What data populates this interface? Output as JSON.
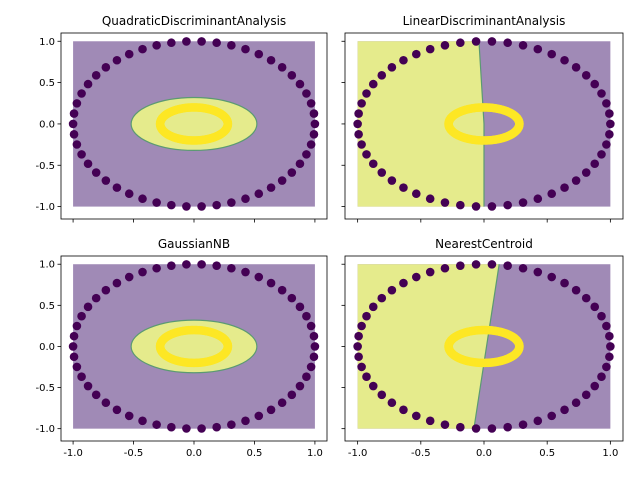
{
  "chart_data": [
    {
      "type": "scatter",
      "title": "QuadraticDiscriminantAnalysis",
      "region": "ellipse",
      "xlim": [
        -1.1,
        1.1
      ],
      "ylim": [
        -1.15,
        1.1
      ],
      "xticks": [
        "-1.0",
        "-0.5",
        "0.0",
        "0.5",
        "1.0"
      ],
      "yticks": [
        "-1.0",
        "-0.5",
        "0.0",
        "0.5",
        "1.0"
      ],
      "show_xtick_labels": false,
      "show_ytick_labels": true
    },
    {
      "type": "scatter",
      "title": "LinearDiscriminantAnalysis",
      "region": "split",
      "boundary": [
        [
          -0.04,
          1.0
        ],
        [
          0.0,
          0.0
        ],
        [
          0.0,
          -1.0
        ]
      ],
      "xlim": [
        -1.1,
        1.1
      ],
      "ylim": [
        -1.15,
        1.1
      ],
      "xticks": [
        "-1.0",
        "-0.5",
        "0.0",
        "0.5",
        "1.0"
      ],
      "yticks": [
        "-1.0",
        "-0.5",
        "0.0",
        "0.5",
        "1.0"
      ],
      "show_xtick_labels": false,
      "show_ytick_labels": false
    },
    {
      "type": "scatter",
      "title": "GaussianNB",
      "region": "ellipse",
      "xlim": [
        -1.1,
        1.1
      ],
      "ylim": [
        -1.15,
        1.1
      ],
      "xticks": [
        "-1.0",
        "-0.5",
        "0.0",
        "0.5",
        "1.0"
      ],
      "yticks": [
        "-1.0",
        "-0.5",
        "0.0",
        "0.5",
        "1.0"
      ],
      "show_xtick_labels": true,
      "show_ytick_labels": true
    },
    {
      "type": "scatter",
      "title": "NearestCentroid",
      "region": "split",
      "boundary": [
        [
          0.12,
          1.0
        ],
        [
          -0.08,
          -1.0
        ]
      ],
      "xlim": [
        -1.1,
        1.1
      ],
      "ylim": [
        -1.15,
        1.1
      ],
      "xticks": [
        "-1.0",
        "-0.5",
        "0.0",
        "0.5",
        "1.0"
      ],
      "yticks": [
        "-1.0",
        "-0.5",
        "0.0",
        "0.5",
        "1.0"
      ],
      "show_xtick_labels": true,
      "show_ytick_labels": false
    }
  ],
  "common": {
    "outer_circle": {
      "radius": 1.0,
      "points": 50,
      "color": "#440154"
    },
    "inner_circle": {
      "center": [
        0,
        0
      ],
      "radius_x": 0.28,
      "radius_y": 0.2,
      "color": "#fde725"
    },
    "ellipse_region": {
      "radius_x": 0.52,
      "radius_y": 0.32
    },
    "region_extent": {
      "x": [
        -1.0,
        1.0
      ],
      "y": [
        -1.0,
        1.0
      ]
    },
    "colors": {
      "class0_region": "#a08ab6",
      "class1_region": "#e5eb8c",
      "boundary": "#5b9a72"
    }
  }
}
